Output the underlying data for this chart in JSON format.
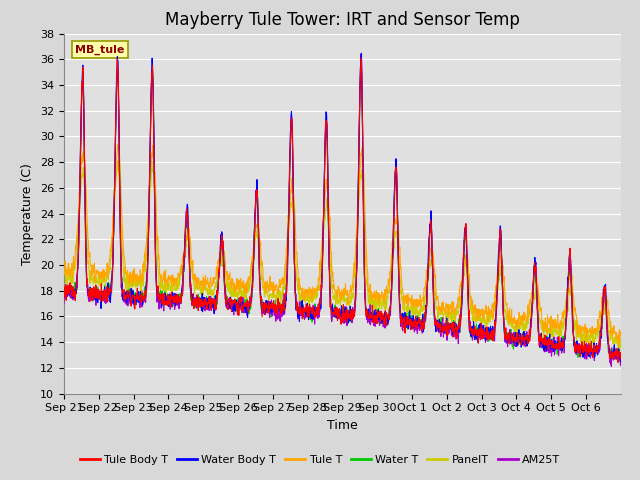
{
  "title": "Mayberry Tule Tower: IRT and Sensor Temp",
  "ylabel": "Temperature (C)",
  "xlabel": "Time",
  "watermark": "MB_tule",
  "ylim": [
    10,
    38
  ],
  "xlim": [
    0,
    16
  ],
  "x_labels": [
    "Sep 21",
    "Sep 22",
    "Sep 23",
    "Sep 24",
    "Sep 25",
    "Sep 26",
    "Sep 27",
    "Sep 28",
    "Sep 29",
    "Sep 30",
    "Oct 1",
    "Oct 2",
    "Oct 3",
    "Oct 4",
    "Oct 5",
    "Oct 6"
  ],
  "series": {
    "Tule Body T": {
      "color": "#ff0000"
    },
    "Water Body T": {
      "color": "#0000ff"
    },
    "Tule T": {
      "color": "#ffa500"
    },
    "Water T": {
      "color": "#00cc00"
    },
    "PanelT": {
      "color": "#cccc00"
    },
    "AM25T": {
      "color": "#aa00cc"
    }
  },
  "background_color": "#e0e0e0",
  "grid_color": "#ffffff",
  "fig_facecolor": "#d8d8d8",
  "title_fontsize": 12,
  "axis_fontsize": 9,
  "tick_fontsize": 8,
  "n_days": 16,
  "pts_per_day": 96
}
